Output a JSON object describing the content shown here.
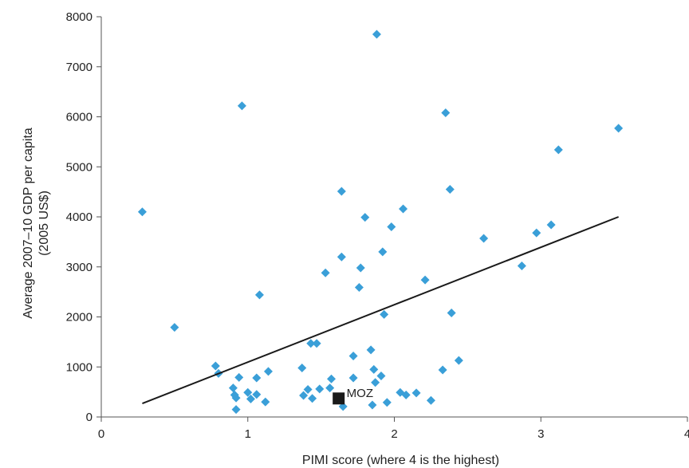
{
  "chart_data": {
    "type": "scatter",
    "xlabel": "PIMI score (where 4 is the highest)",
    "ylabel_lines": [
      "Average 2007–10 GDP per capita",
      "(2005 US$)"
    ],
    "xlim": [
      0,
      4
    ],
    "ylim": [
      0,
      8000
    ],
    "xticks": [
      0,
      1,
      2,
      3,
      4
    ],
    "yticks": [
      0,
      1000,
      2000,
      3000,
      4000,
      5000,
      6000,
      7000,
      8000
    ],
    "grid": false,
    "marker_color": "#3a9fd8",
    "highlight_color": "#1a1a1a",
    "line_color": "#1a1a1a",
    "points": [
      [
        0.28,
        4100
      ],
      [
        0.5,
        1790
      ],
      [
        0.78,
        1020
      ],
      [
        0.8,
        870
      ],
      [
        0.9,
        580
      ],
      [
        0.91,
        440
      ],
      [
        0.92,
        380
      ],
      [
        0.92,
        150
      ],
      [
        0.94,
        790
      ],
      [
        0.96,
        6220
      ],
      [
        1.0,
        490
      ],
      [
        1.02,
        360
      ],
      [
        1.06,
        450
      ],
      [
        1.06,
        780
      ],
      [
        1.08,
        2440
      ],
      [
        1.12,
        300
      ],
      [
        1.14,
        910
      ],
      [
        1.37,
        980
      ],
      [
        1.38,
        430
      ],
      [
        1.41,
        550
      ],
      [
        1.43,
        1470
      ],
      [
        1.44,
        370
      ],
      [
        1.47,
        1470
      ],
      [
        1.49,
        560
      ],
      [
        1.53,
        2880
      ],
      [
        1.56,
        580
      ],
      [
        1.57,
        760
      ],
      [
        1.64,
        4510
      ],
      [
        1.64,
        3200
      ],
      [
        1.65,
        210
      ],
      [
        1.72,
        1220
      ],
      [
        1.72,
        780
      ],
      [
        1.76,
        2590
      ],
      [
        1.77,
        2980
      ],
      [
        1.8,
        3990
      ],
      [
        1.84,
        1340
      ],
      [
        1.85,
        240
      ],
      [
        1.86,
        950
      ],
      [
        1.87,
        690
      ],
      [
        1.88,
        7650
      ],
      [
        1.91,
        820
      ],
      [
        1.92,
        3300
      ],
      [
        1.93,
        2050
      ],
      [
        1.95,
        290
      ],
      [
        1.98,
        3800
      ],
      [
        2.04,
        490
      ],
      [
        2.06,
        4160
      ],
      [
        2.08,
        440
      ],
      [
        2.15,
        480
      ],
      [
        2.21,
        2740
      ],
      [
        2.25,
        330
      ],
      [
        2.33,
        940
      ],
      [
        2.35,
        6080
      ],
      [
        2.38,
        4550
      ],
      [
        2.39,
        2080
      ],
      [
        2.44,
        1130
      ],
      [
        2.61,
        3570
      ],
      [
        2.87,
        3020
      ],
      [
        2.97,
        3680
      ],
      [
        3.07,
        3840
      ],
      [
        3.12,
        5340
      ],
      [
        3.53,
        5770
      ]
    ],
    "highlight": {
      "label": "MOZ",
      "x": 1.62,
      "y": 370
    },
    "trendline": {
      "x": [
        0.28,
        3.53
      ],
      "y": [
        270,
        4000
      ]
    }
  }
}
